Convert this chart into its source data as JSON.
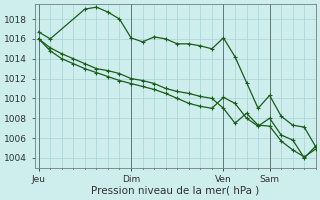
{
  "bg_color": "#ceeeed",
  "grid_color": "#a8d4d4",
  "line_color": "#1a5c1a",
  "ylim": [
    1003.0,
    1019.5
  ],
  "yticks": [
    1004,
    1006,
    1008,
    1010,
    1012,
    1014,
    1016,
    1018
  ],
  "xlabel": "Pression niveau de la mer( hPa )",
  "xtick_labels": [
    "Jeu",
    "Dim",
    "Ven",
    "Sam"
  ],
  "xtick_positions": [
    0,
    24,
    48,
    60
  ],
  "xlim": [
    -1,
    72
  ],
  "line1_x": [
    0,
    3,
    12,
    15,
    18,
    21,
    24,
    27,
    30,
    33,
    36,
    39,
    42,
    45,
    48,
    51,
    54,
    57,
    60,
    63,
    66,
    69,
    72
  ],
  "line1_y": [
    1016.7,
    1016.0,
    1019.0,
    1019.2,
    1018.7,
    1018.0,
    1016.1,
    1015.7,
    1016.2,
    1016.0,
    1015.5,
    1015.5,
    1015.3,
    1015.0,
    1016.1,
    1014.2,
    1011.6,
    1009.0,
    1010.3,
    1008.2,
    1007.3,
    1007.1,
    1005.1
  ],
  "line2_x": [
    0,
    3,
    6,
    9,
    12,
    15,
    18,
    21,
    24,
    27,
    30,
    33,
    36,
    39,
    42,
    45,
    48,
    51,
    54,
    57,
    60,
    63,
    66,
    69,
    72
  ],
  "line2_y": [
    1016.0,
    1015.1,
    1014.5,
    1014.0,
    1013.5,
    1013.0,
    1012.8,
    1012.5,
    1012.0,
    1011.8,
    1011.5,
    1011.0,
    1010.7,
    1010.5,
    1010.2,
    1010.0,
    1009.0,
    1007.5,
    1008.5,
    1007.3,
    1007.2,
    1005.7,
    1004.8,
    1004.1,
    1004.9
  ],
  "line3_x": [
    0,
    3,
    6,
    9,
    12,
    15,
    18,
    21,
    24,
    27,
    30,
    33,
    36,
    39,
    42,
    45,
    48,
    51,
    54,
    57,
    60,
    63,
    66,
    69,
    72
  ],
  "line3_y": [
    1016.0,
    1014.8,
    1014.0,
    1013.5,
    1013.0,
    1012.6,
    1012.2,
    1011.8,
    1011.5,
    1011.2,
    1010.9,
    1010.5,
    1010.0,
    1009.5,
    1009.2,
    1009.0,
    1010.1,
    1009.5,
    1008.0,
    1007.2,
    1008.0,
    1006.3,
    1005.8,
    1004.0,
    1005.2
  ],
  "vline_positions": [
    0,
    24,
    48,
    60
  ],
  "title_fontsize": 7.5,
  "tick_fontsize": 6.5,
  "marker_size": 2.5
}
